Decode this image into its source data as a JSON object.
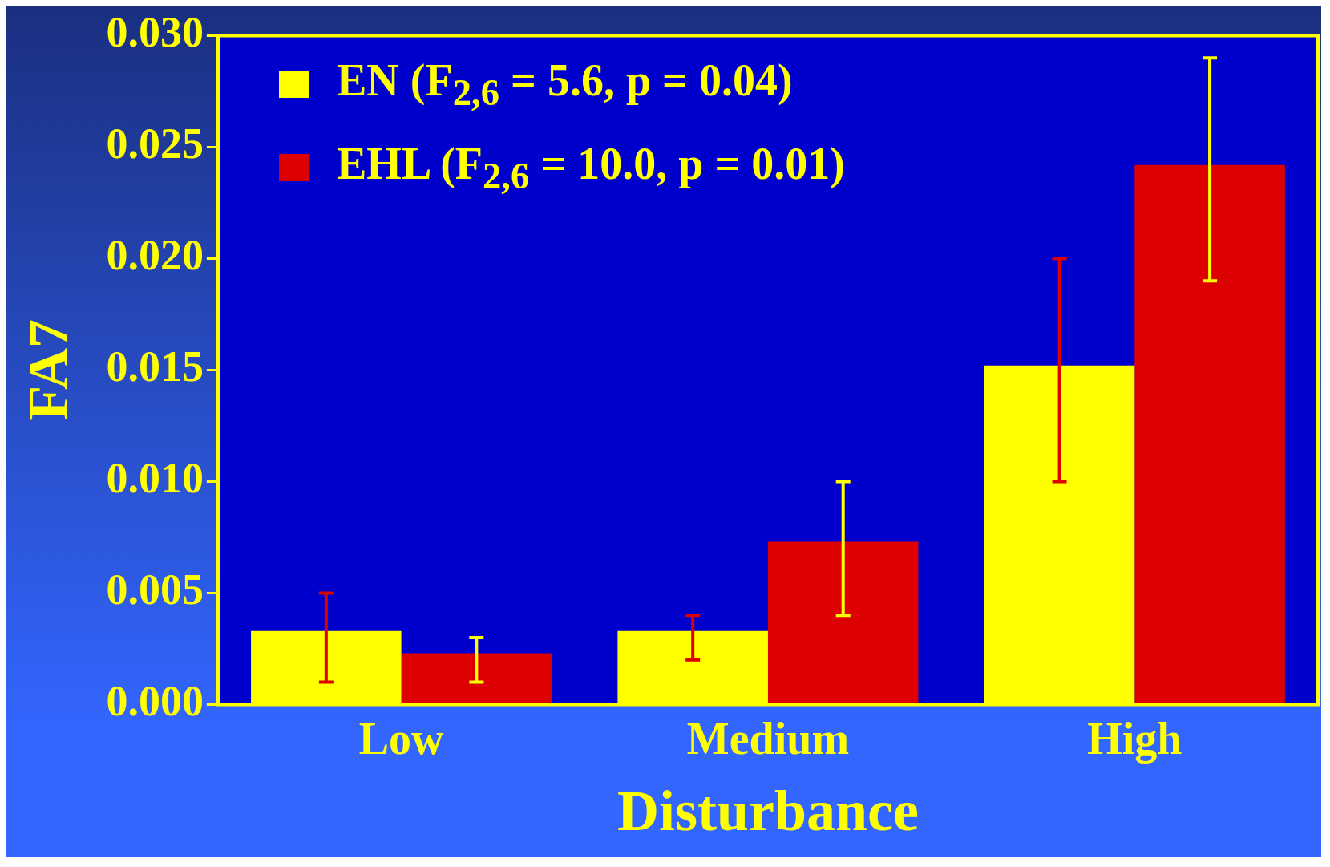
{
  "chart_data": {
    "type": "bar",
    "xlabel": "Disturbance",
    "ylabel": "FA7",
    "categories": [
      "Low",
      "Medium",
      "High"
    ],
    "series": [
      {
        "name": "EN (F$_{2,6}$ = 5.6, p = 0.04)",
        "color": "#ffff00",
        "values": [
          0.0033,
          0.0033,
          0.0152
        ],
        "errors": [
          [
            0.001,
            0.005
          ],
          [
            0.002,
            0.004
          ],
          [
            0.01,
            0.02
          ]
        ]
      },
      {
        "name": "EHL (F$_{2,6}$ = 10.0, p = 0.01)",
        "color": "#dd0000",
        "values": [
          0.0023,
          0.0073,
          0.0242
        ],
        "errors": [
          [
            0.001,
            0.003
          ],
          [
            0.004,
            0.01
          ],
          [
            0.019,
            0.029
          ]
        ]
      }
    ],
    "ylim": [
      0,
      0.03
    ],
    "yticks": [
      {
        "value": 0,
        "label": "0.000"
      },
      {
        "value": 0.005,
        "label": "0.005"
      },
      {
        "value": 0.01,
        "label": "0.010"
      },
      {
        "value": 0.015,
        "label": "0.015"
      },
      {
        "value": 0.02,
        "label": "0.020"
      },
      {
        "value": 0.025,
        "label": "0.025"
      },
      {
        "value": 0.03,
        "label": "0.030"
      }
    ],
    "grid": false,
    "legend": "top left"
  }
}
